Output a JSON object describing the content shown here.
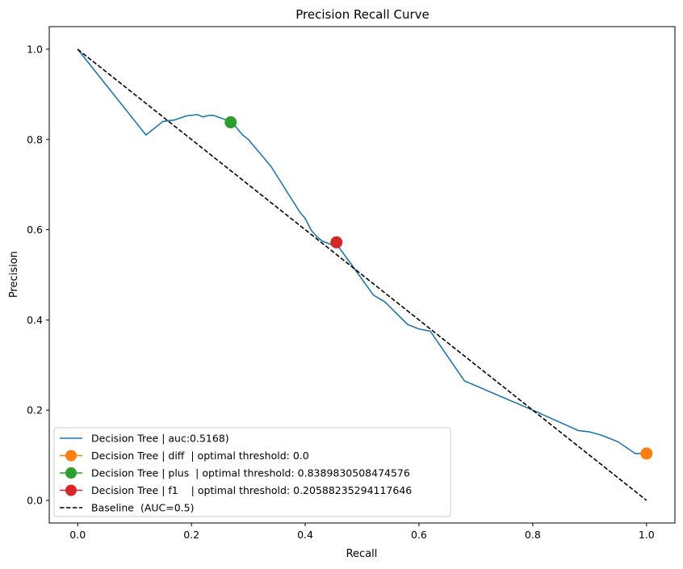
{
  "chart_data": {
    "type": "line",
    "title": "Precision Recall Curve",
    "xlabel": "Recall",
    "ylabel": "Precision",
    "xlim": [
      -0.05,
      1.05
    ],
    "ylim": [
      -0.05,
      1.05
    ],
    "xticks": [
      0.0,
      0.2,
      0.4,
      0.6,
      0.8,
      1.0
    ],
    "yticks": [
      0.0,
      0.2,
      0.4,
      0.6,
      0.8,
      1.0
    ],
    "tick_labels_x": [
      "0.0",
      "0.2",
      "0.4",
      "0.6",
      "0.8",
      "1.0"
    ],
    "tick_labels_y": [
      "0.0",
      "0.2",
      "0.4",
      "0.6",
      "0.8",
      "1.0"
    ],
    "grid": false,
    "legend_position": "lower-left",
    "series": [
      {
        "name": "Decision Tree | auc:0.5168)",
        "kind": "line",
        "color": "#1f77b4",
        "x": [
          0.0,
          0.12,
          0.15,
          0.17,
          0.19,
          0.21,
          0.22,
          0.23,
          0.24,
          0.25,
          0.26,
          0.27,
          0.28,
          0.29,
          0.3,
          0.31,
          0.32,
          0.33,
          0.34,
          0.35,
          0.36,
          0.37,
          0.38,
          0.39,
          0.4,
          0.41,
          0.42,
          0.43,
          0.44,
          0.45,
          0.46,
          0.48,
          0.5,
          0.52,
          0.54,
          0.56,
          0.58,
          0.6,
          0.62,
          0.68,
          0.8,
          0.88,
          0.9,
          0.92,
          0.95,
          0.98,
          1.0
        ],
        "y": [
          1.0,
          0.81,
          0.84,
          0.843,
          0.852,
          0.855,
          0.85,
          0.853,
          0.853,
          0.848,
          0.844,
          0.84,
          0.825,
          0.81,
          0.8,
          0.785,
          0.77,
          0.755,
          0.74,
          0.72,
          0.7,
          0.68,
          0.66,
          0.64,
          0.625,
          0.6,
          0.585,
          0.575,
          0.57,
          0.565,
          0.56,
          0.525,
          0.49,
          0.455,
          0.44,
          0.415,
          0.39,
          0.38,
          0.375,
          0.265,
          0.2,
          0.155,
          0.152,
          0.145,
          0.13,
          0.104,
          0.104
        ]
      },
      {
        "name": "Decision Tree | diff  | optimal threshold: 0.0",
        "kind": "marker",
        "color": "#ff7f0e",
        "x": [
          1.0
        ],
        "y": [
          0.104
        ]
      },
      {
        "name": "Decision Tree | plus  | optimal threshold: 0.8389830508474576",
        "kind": "marker",
        "color": "#2ca02c",
        "x": [
          0.269
        ],
        "y": [
          0.838
        ]
      },
      {
        "name": "Decision Tree | f1    | optimal threshold: 0.20588235294117646",
        "kind": "marker",
        "color": "#d62728",
        "x": [
          0.455
        ],
        "y": [
          0.572
        ]
      },
      {
        "name": "Baseline  (AUC=0.5)",
        "kind": "dashed-line",
        "color": "#000000",
        "x": [
          0.0,
          1.0
        ],
        "y": [
          1.0,
          0.0
        ]
      }
    ]
  }
}
